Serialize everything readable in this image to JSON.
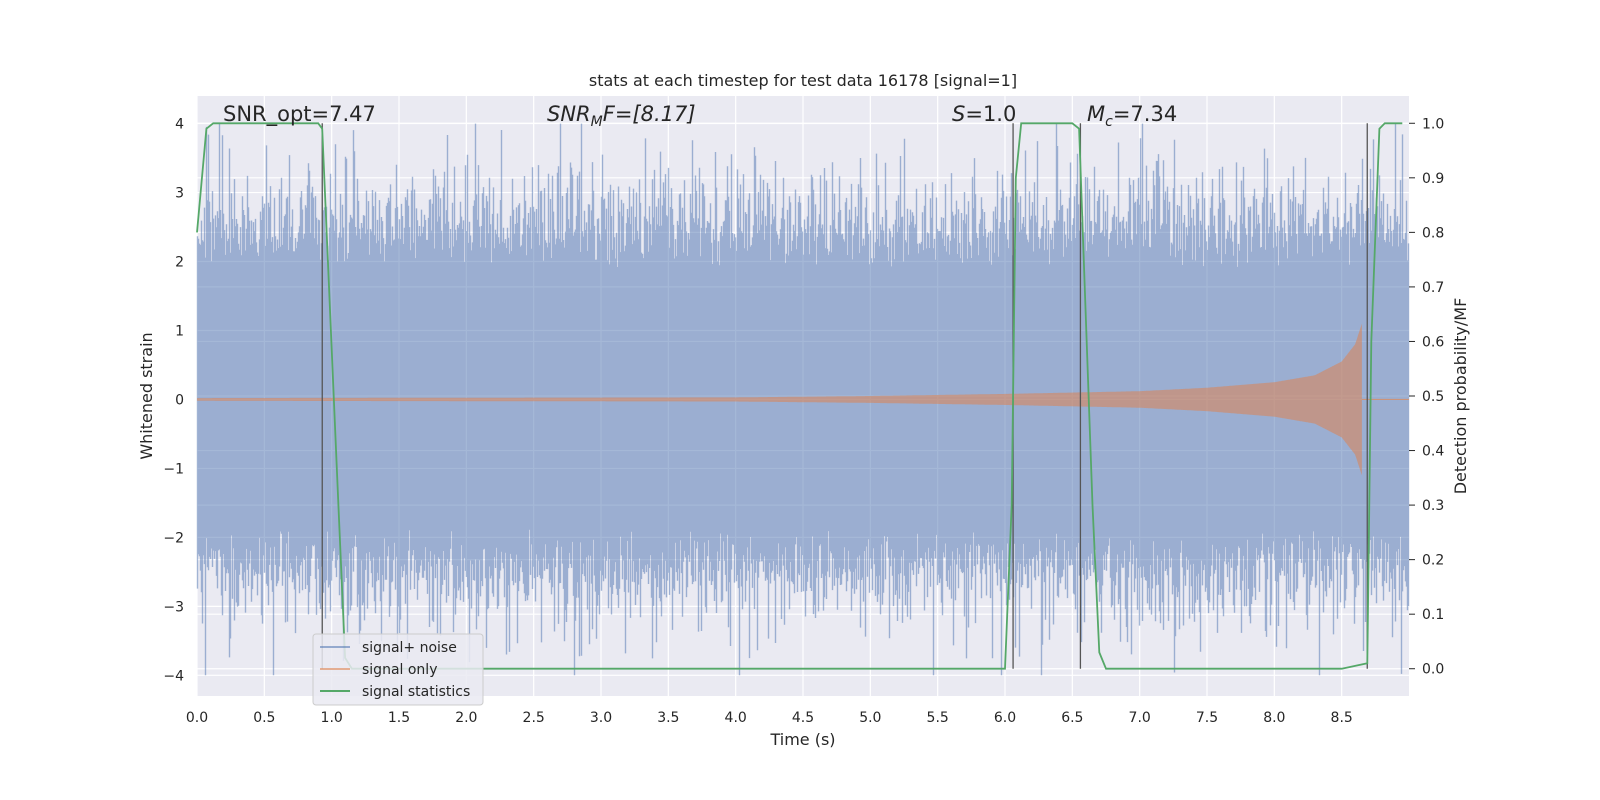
{
  "chart_data": {
    "type": "line",
    "title": "stats at each timestep for test data 16178 [signal=1]",
    "xlabel": "Time (s)",
    "ylabel": "Whitened strain",
    "ylabel_right": "Detection probability/MF",
    "xlim": [
      0.0,
      9.0
    ],
    "ylim": [
      -4.3,
      4.4
    ],
    "ylim_right": [
      -0.05,
      1.05
    ],
    "xticks": [
      0.0,
      0.5,
      1.0,
      1.5,
      2.0,
      2.5,
      3.0,
      3.5,
      4.0,
      4.5,
      5.0,
      5.5,
      6.0,
      6.5,
      7.0,
      7.5,
      8.0,
      8.5
    ],
    "xtick_labels": [
      "0.0",
      "0.5",
      "1.0",
      "1.5",
      "2.0",
      "2.5",
      "3.0",
      "3.5",
      "4.0",
      "4.5",
      "5.0",
      "5.5",
      "6.0",
      "6.5",
      "7.0",
      "7.5",
      "8.0",
      "8.5"
    ],
    "yticks": [
      -4,
      -3,
      -2,
      -1,
      0,
      1,
      2,
      3,
      4
    ],
    "ytick_labels": [
      "−4",
      "−3",
      "−2",
      "−1",
      "0",
      "1",
      "2",
      "3",
      "4"
    ],
    "yticks_right": [
      0.0,
      0.1,
      0.2,
      0.3,
      0.4,
      0.5,
      0.6,
      0.7,
      0.8,
      0.9,
      1.0
    ],
    "ytick_labels_right": [
      "0.0",
      "0.1",
      "0.2",
      "0.3",
      "0.4",
      "0.5",
      "0.6",
      "0.7",
      "0.8",
      "0.9",
      "1.0"
    ],
    "grid": true,
    "legend_position": "bottom-left",
    "annotations": {
      "snr_opt": "SNR_opt=7.47",
      "snr_mf_main": "SNR",
      "snr_mf_sub": "M",
      "snr_mf_rest": "F=[8.17]",
      "s_main": "S",
      "s_rest": "=1.0",
      "mc_main": "M",
      "mc_sub": "c",
      "mc_rest": "=7.34"
    },
    "series": [
      {
        "name": "signal+ noise",
        "color": "#4c72b0",
        "axis": "left",
        "style": "noise band",
        "amplitude_typical": 2.2,
        "amplitude_peak": 4.0
      },
      {
        "name": "signal only",
        "color": "#dd8452",
        "axis": "left",
        "style": "chirp",
        "amplitude_envelope": {
          "t": [
            0.0,
            4.0,
            5.0,
            6.0,
            7.0,
            7.5,
            8.0,
            8.3,
            8.5,
            8.6,
            8.65
          ],
          "amp": [
            0.02,
            0.03,
            0.05,
            0.08,
            0.12,
            0.17,
            0.25,
            0.35,
            0.55,
            0.8,
            1.1
          ]
        }
      },
      {
        "name": "signal statistics",
        "color": "#55a868",
        "axis": "right",
        "x": [
          0.0,
          0.07,
          0.12,
          0.9,
          0.93,
          1.05,
          1.1,
          1.15,
          1.2,
          6.0,
          6.05,
          6.08,
          6.12,
          6.5,
          6.55,
          6.65,
          6.7,
          6.75,
          7.1,
          8.5,
          8.69,
          8.72,
          8.78,
          8.82,
          8.95
        ],
        "y": [
          0.8,
          0.99,
          1.0,
          1.0,
          0.99,
          0.3,
          0.02,
          0.0,
          0.0,
          0.0,
          0.3,
          0.9,
          1.0,
          1.0,
          0.99,
          0.3,
          0.03,
          0.0,
          0.0,
          0.0,
          0.01,
          0.6,
          0.99,
          1.0,
          1.0
        ]
      }
    ],
    "vertical_lines": [
      0.93,
      6.06,
      6.56,
      8.69
    ]
  }
}
